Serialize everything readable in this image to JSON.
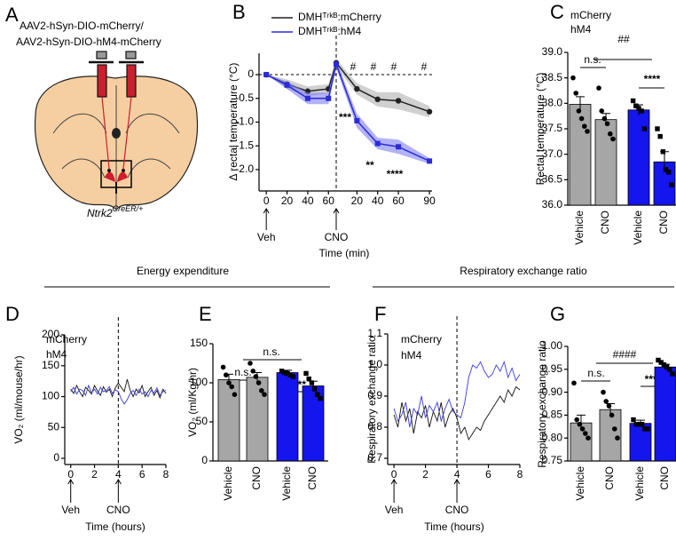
{
  "diagram": {
    "label": "A",
    "lines": [
      "AAV2-hSyn-DIO-mCherry/",
      "AAV2-hSyn-DIO-hM4-mCherry"
    ],
    "genotype": "Ntrk2",
    "genotype_superscript": "CreER/+"
  },
  "sections": [
    "Energy expenditure",
    "Respiratory exchange ratio"
  ],
  "chart_data": [
    {
      "type": "line",
      "label": "B",
      "ylabel": "Δ rectal temperature (°C)",
      "xlabel": "Time (min)",
      "x": [
        0,
        20,
        40,
        60,
        67.5,
        87.5,
        107.5,
        127.5,
        157.5
      ],
      "series": [
        {
          "name": "DMHᵀʳᵏᴮ:mCherry",
          "color": "#222222",
          "band_color": "#b0b0b0",
          "marker": "circle",
          "values": [
            0,
            -0.2,
            -0.35,
            -0.3,
            0.25,
            -0.3,
            -0.52,
            -0.55,
            -0.78
          ],
          "errors": [
            0,
            0.1,
            0.1,
            0.1,
            0.08,
            0.12,
            0.15,
            0.18,
            0.12
          ]
        },
        {
          "name": "DMHᵀʳᵏᴮ:hM4",
          "color": "#2b2bd9",
          "band_color": "#7f7ff0",
          "marker": "square",
          "values": [
            0,
            -0.22,
            -0.5,
            -0.5,
            0.22,
            -0.97,
            -1.45,
            -1.52,
            -1.82
          ],
          "errors": [
            0,
            0.08,
            0.12,
            0.12,
            0.08,
            0.15,
            0.12,
            0.15,
            0.06
          ]
        }
      ],
      "xlim": [
        -7,
        160
      ],
      "xticks": [
        0,
        20,
        40,
        60,
        {
          "value": 87.5,
          "label": "20"
        },
        {
          "value": 107.5,
          "label": "40"
        },
        {
          "value": 127.5,
          "label": "60"
        },
        {
          "value": 157.5,
          "label": "90"
        }
      ],
      "ylim": [
        -2.45,
        0.45
      ],
      "yticks": [
        0,
        -0.5,
        {
          "value": -1,
          "label": "-1.0"
        },
        -1.5,
        {
          "value": -2,
          "label": "-2.0"
        }
      ],
      "zero_line": true,
      "legend_swatch": true,
      "events": [
        {
          "x": 0,
          "label": "Veh"
        },
        {
          "x": 67.5,
          "label": "CNO",
          "dashed_line": true
        }
      ],
      "annotations": [
        {
          "text": "#",
          "color": "#000000"
        },
        {
          "text": "#",
          "color": "#000000"
        },
        {
          "text": "#",
          "color": "#000000"
        },
        {
          "text": "#",
          "color": "#000000"
        },
        {
          "text": "***",
          "color": "#2b2bd9"
        },
        {
          "text": "**",
          "color": "#2b2bd9"
        },
        {
          "text": "****",
          "color": "#2b2bd9"
        }
      ]
    },
    {
      "type": "bar",
      "label": "C",
      "ylabel": "Rectal temperature (°C)",
      "categories": [
        "Vehicle",
        "CNO",
        "Vehicle",
        "CNO"
      ],
      "values": [
        37.98,
        37.68,
        37.87,
        36.85
      ],
      "errors": [
        0.15,
        0.12,
        0.1,
        0.2
      ],
      "colors": [
        "#a6a6a6",
        "#a6a6a6",
        "#1515ee",
        "#1515ee"
      ],
      "points": [
        [
          38.5,
          38.2,
          37.85,
          37.7,
          37.55,
          37.45
        ],
        [
          38.3,
          37.85,
          37.7,
          37.6,
          37.4,
          37.3
        ],
        [
          38.05,
          37.95,
          37.9,
          37.85,
          37.5
        ],
        [
          37.5,
          37.35,
          37.05,
          36.7,
          36.65,
          36.4
        ]
      ],
      "ylim": [
        36,
        39
      ],
      "yticks": [
        {
          "value": 36,
          "label": "36.0"
        },
        36.5,
        {
          "value": 37,
          "label": "37.0"
        },
        37.5,
        {
          "value": 38,
          "label": "38.0"
        },
        38.5,
        {
          "value": 39,
          "label": "39.0"
        }
      ],
      "legend": [
        {
          "name": "mCherry",
          "color": "#000000"
        },
        {
          "name": "hM4",
          "color": "#1515ee"
        }
      ],
      "annotations": [
        {
          "text": "n.s.",
          "color": "#000000"
        },
        {
          "text": "##",
          "color": "#000000"
        },
        {
          "text": "****",
          "color": "#1515ee"
        }
      ]
    },
    {
      "type": "line",
      "label": "D",
      "ylabel": "VO₂ (ml/mouse/hr)",
      "xlabel": "Time (hours)",
      "x": [
        0,
        0.25,
        0.5,
        0.75,
        1,
        1.25,
        1.5,
        1.75,
        2,
        2.25,
        2.5,
        2.75,
        3,
        3.25,
        3.5,
        3.75,
        4,
        4.25,
        4.5,
        4.75,
        5,
        5.25,
        5.5,
        5.75,
        6,
        6.25,
        6.5,
        6.75,
        7,
        7.25,
        7.5,
        7.75,
        8
      ],
      "series": [
        {
          "name": "mCherry",
          "color": "#111111",
          "values": [
            112,
            105,
            118,
            108,
            100,
            115,
            110,
            104,
            118,
            109,
            102,
            116,
            107,
            112,
            100,
            114,
            122,
            115,
            108,
            128,
            110,
            100,
            112,
            106,
            118,
            100,
            108,
            115,
            102,
            110,
            98,
            112,
            105
          ]
        },
        {
          "name": "hM4",
          "color": "#3a3ae0",
          "values": [
            108,
            115,
            104,
            112,
            110,
            102,
            118,
            106,
            112,
            104,
            115,
            108,
            110,
            116,
            105,
            111,
            108,
            96,
            88,
            95,
            105,
            110,
            102,
            112,
            104,
            108,
            100,
            110,
            106,
            114,
            102,
            108,
            110
          ]
        }
      ],
      "xlim": [
        -0.5,
        8
      ],
      "xticks": [
        0,
        2,
        4,
        6,
        8
      ],
      "ylim": [
        -10,
        200
      ],
      "yticks": [
        0,
        50,
        100,
        150,
        200
      ],
      "legend_swatch": false,
      "events": [
        {
          "x": 0,
          "label": "Veh"
        },
        {
          "x": 4,
          "label": "CNO",
          "dashed_line": true
        }
      ],
      "annotations": []
    },
    {
      "type": "bar",
      "label": "E",
      "ylabel": "VO₂ (ml/Kg/hr)",
      "categories": [
        "Vehicle",
        "CNO",
        "Vehicle",
        "CNO"
      ],
      "values": [
        104,
        107,
        113,
        96
      ],
      "errors": [
        7,
        6,
        3,
        6
      ],
      "colors": [
        "#a6a6a6",
        "#a6a6a6",
        "#1515ee",
        "#1515ee"
      ],
      "points": [
        [
          120,
          110,
          100,
          95,
          85
        ],
        [
          125,
          115,
          108,
          100,
          90,
          85
        ],
        [
          115,
          113,
          112,
          110,
          108
        ],
        [
          112,
          105,
          100,
          92,
          85,
          80
        ]
      ],
      "ylim": [
        0,
        150
      ],
      "yticks": [
        0,
        50,
        100,
        150
      ],
      "annotations": [
        {
          "text": "n.s.",
          "color": "#000000"
        },
        {
          "text": "n.s.",
          "color": "#000000"
        },
        {
          "text": "***",
          "color": "#1515ee"
        }
      ]
    },
    {
      "type": "line",
      "label": "F",
      "ylabel": "Respiratory exchange ratio",
      "xlabel": "Time (hours)",
      "x": [
        0,
        0.25,
        0.5,
        0.75,
        1,
        1.25,
        1.5,
        1.75,
        2,
        2.25,
        2.5,
        2.75,
        3,
        3.25,
        3.5,
        3.75,
        4,
        4.25,
        4.5,
        4.75,
        5,
        5.25,
        5.5,
        5.75,
        6,
        6.25,
        6.5,
        6.75,
        7,
        7.25,
        7.5,
        7.75,
        8
      ],
      "series": [
        {
          "name": "mCherry",
          "color": "#111111",
          "values": [
            0.84,
            0.8,
            0.88,
            0.82,
            0.86,
            0.78,
            0.85,
            0.83,
            0.87,
            0.8,
            0.85,
            0.82,
            0.88,
            0.8,
            0.84,
            0.86,
            0.83,
            0.78,
            0.8,
            0.76,
            0.78,
            0.8,
            0.79,
            0.82,
            0.84,
            0.86,
            0.88,
            0.9,
            0.88,
            0.92,
            0.9,
            0.93,
            0.92
          ]
        },
        {
          "name": "hM4",
          "color": "#3a3ae0",
          "values": [
            0.86,
            0.82,
            0.84,
            0.88,
            0.8,
            0.86,
            0.84,
            0.9,
            0.83,
            0.87,
            0.85,
            0.88,
            0.82,
            0.86,
            0.89,
            0.85,
            0.84,
            0.83,
            0.88,
            0.96,
            1,
            0.99,
            1.01,
            0.98,
            0.96,
            0.97,
            1,
            0.98,
            1.01,
            0.96,
            0.99,
            0.95,
            0.97
          ]
        }
      ],
      "xlim": [
        -0.4,
        8
      ],
      "xticks": [
        0,
        2,
        4,
        6,
        8
      ],
      "ylim": [
        0.68,
        1.1
      ],
      "yticks": [
        0.7,
        0.8,
        0.9,
        {
          "value": 1,
          "label": "1.0"
        },
        1.1
      ],
      "legend_swatch": false,
      "events": [
        {
          "x": 0,
          "label": "Veh"
        },
        {
          "x": 4,
          "label": "CNO",
          "dashed_line": true
        }
      ],
      "annotations": []
    },
    {
      "type": "bar",
      "label": "G",
      "ylabel": "Respiratory exchange ratio",
      "categories": [
        "Vehicle",
        "CNO",
        "Vehicle",
        "CNO"
      ],
      "values": [
        0.833,
        0.862,
        0.832,
        0.955
      ],
      "errors": [
        0.017,
        0.013,
        0.007,
        0.006
      ],
      "colors": [
        "#a6a6a6",
        "#a6a6a6",
        "#1515ee",
        "#1515ee"
      ],
      "points": [
        [
          0.92,
          0.84,
          0.83,
          0.82,
          0.81,
          0.8
        ],
        [
          0.9,
          0.88,
          0.87,
          0.85,
          0.82,
          0.8
        ],
        [
          0.84,
          0.83,
          0.83,
          0.83,
          0.82,
          0.82
        ],
        [
          0.97,
          0.965,
          0.96,
          0.955,
          0.95,
          0.94
        ]
      ],
      "ylim": [
        0.75,
        1
      ],
      "yticks": [
        0.75,
        {
          "value": 0.8,
          "label": "0.80"
        },
        0.85,
        {
          "value": 0.9,
          "label": "0.90"
        },
        0.95,
        {
          "value": 1,
          "label": "1.00"
        }
      ],
      "annotations": [
        {
          "text": "n.s.",
          "color": "#000000"
        },
        {
          "text": "####",
          "color": "#000000"
        },
        {
          "text": "****",
          "color": "#1515ee"
        }
      ]
    }
  ]
}
